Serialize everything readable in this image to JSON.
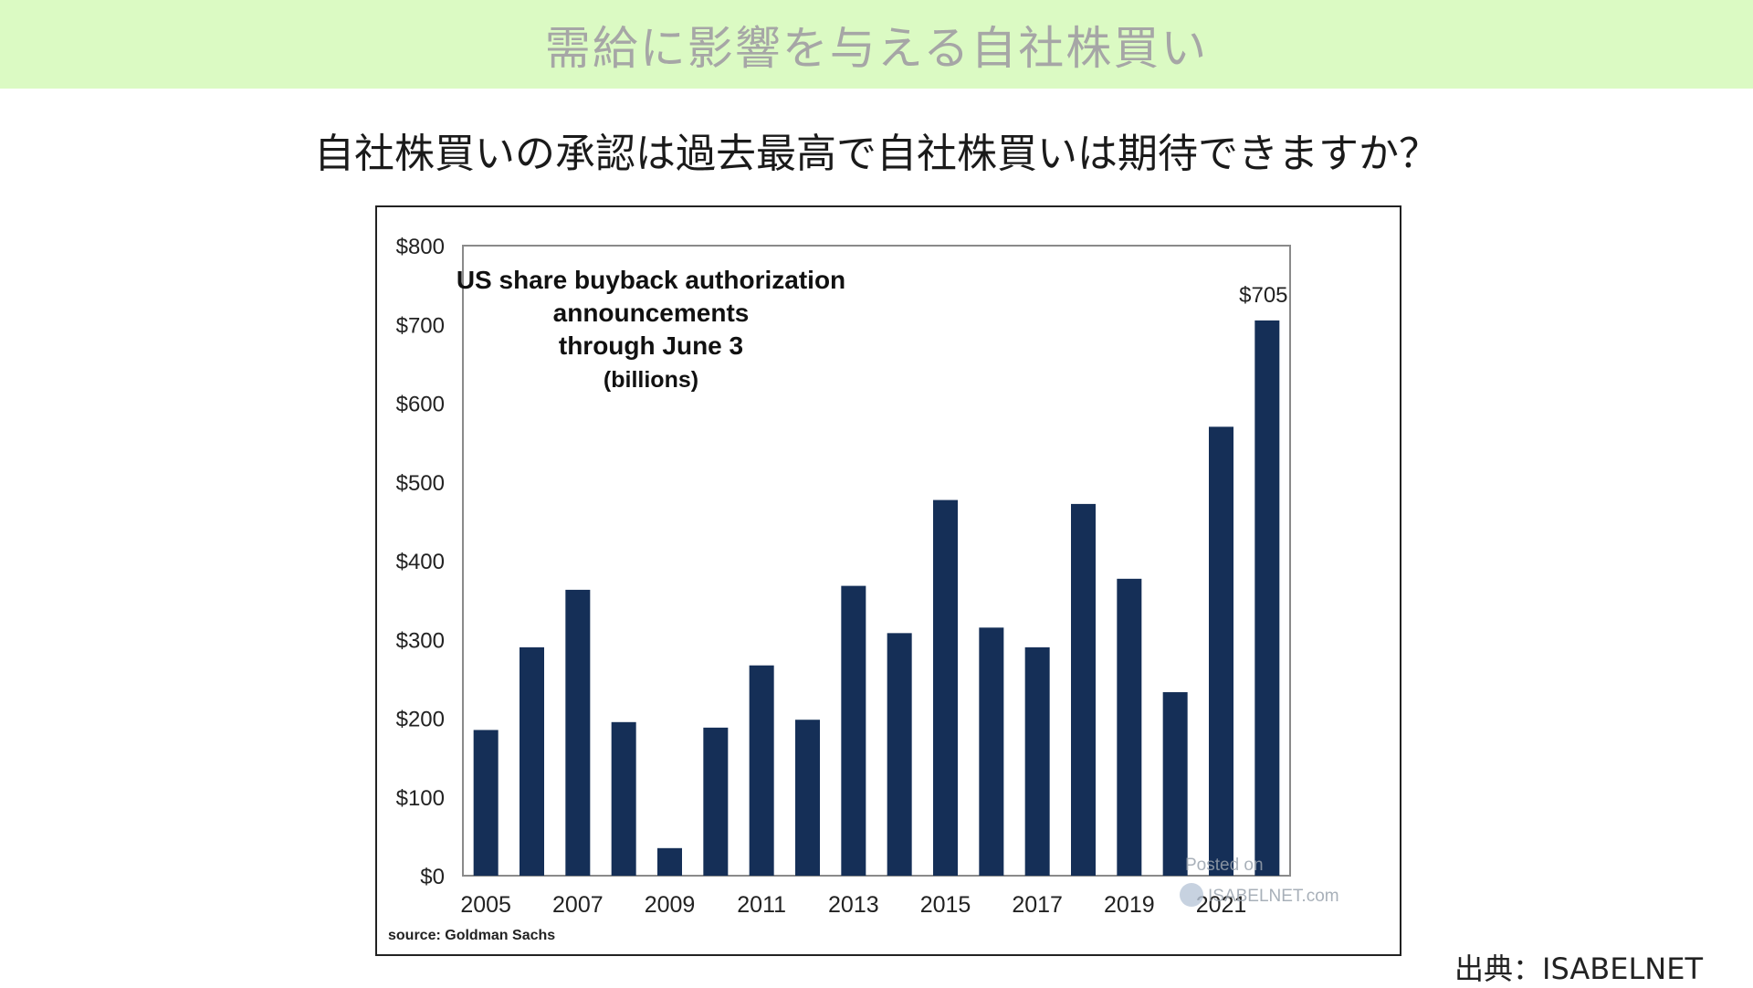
{
  "banner": {
    "title": "需給に影響を与える自社株買い"
  },
  "subtitle": "自社株買いの承認は過去最高で自社株買いは期待できますか？",
  "credit": "出典：ISABELNET",
  "chart_data": {
    "type": "bar",
    "title_lines": [
      "US share buyback authorization",
      "announcements",
      "through June 3",
      "(billions)"
    ],
    "x": [
      2005,
      2006,
      2007,
      2008,
      2009,
      2010,
      2011,
      2012,
      2013,
      2014,
      2015,
      2016,
      2017,
      2018,
      2019,
      2020,
      2021,
      2022
    ],
    "x_tick_labels": [
      "2005",
      "",
      "2007",
      "",
      "2009",
      "",
      "2011",
      "",
      "2013",
      "",
      "2015",
      "",
      "2017",
      "",
      "2019",
      "",
      "2021",
      ""
    ],
    "values": [
      185,
      290,
      363,
      195,
      35,
      188,
      267,
      198,
      368,
      308,
      477,
      315,
      290,
      472,
      377,
      233,
      570,
      705
    ],
    "value_labels": [
      "",
      "",
      "",
      "",
      "",
      "",
      "",
      "",
      "",
      "",
      "",
      "",
      "",
      "",
      "",
      "",
      "",
      "$705"
    ],
    "ylim": [
      0,
      800
    ],
    "y_ticks": [
      0,
      100,
      200,
      300,
      400,
      500,
      600,
      700,
      800
    ],
    "y_tick_labels": [
      "$0",
      "$100",
      "$200",
      "$300",
      "$400",
      "$500",
      "$600",
      "$700",
      "$800"
    ],
    "source": "source: Goldman Sachs",
    "watermark": [
      "Posted on",
      "ISABELNET.com"
    ],
    "grid": false,
    "bar_color": "#152f57"
  }
}
